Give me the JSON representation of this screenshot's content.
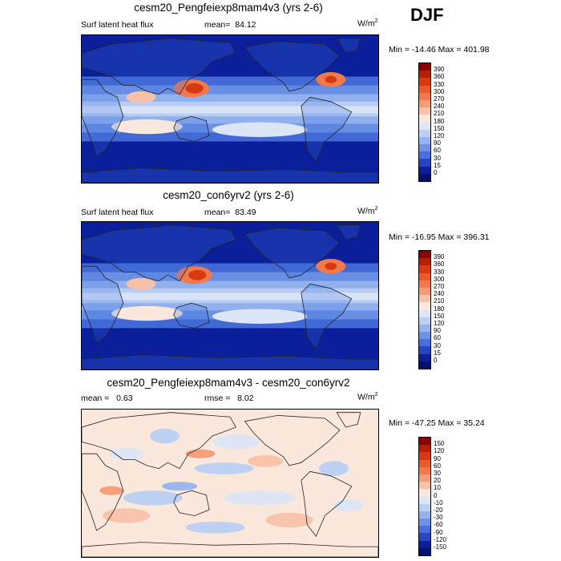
{
  "season": "DJF",
  "units_base": "W/m",
  "units_exp": "2",
  "panels": [
    {
      "title": "cesm20_Pengfeiexp8mam4v3 (yrs 2-6)",
      "left_label": "Surf latent heat flux",
      "stat_label": "mean=",
      "stat_value": "84.12",
      "minmax": "Min = -14.46 Max = 401.98"
    },
    {
      "title": "cesm20_con6yrv2 (yrs 2-6)",
      "left_label": "Surf latent heat flux",
      "stat_label": "mean=",
      "stat_value": "83.49",
      "minmax": "Min = -16.95 Max = 396.31"
    },
    {
      "title": "cesm20_Pengfeiexp8mam4v3 - cesm20_con6yrv2",
      "left_label": "mean =",
      "left_value": "0.63",
      "stat_label": "rmse =",
      "stat_value": "8.02",
      "minmax": "Min = -47.25 Max =  35.24"
    }
  ],
  "chart_data": [
    {
      "type": "heatmap",
      "title": "cesm20_Pengfeiexp8mam4v3 (yrs 2-6)",
      "variable": "Surf latent heat flux",
      "mean": 84.12,
      "min": -14.46,
      "max": 401.98,
      "levels": [
        "390",
        "360",
        "330",
        "300",
        "270",
        "240",
        "210",
        "180",
        "150",
        "120",
        "90",
        "60",
        "30",
        "15",
        "0"
      ],
      "colors": [
        "#8b0000",
        "#b22000",
        "#d73a10",
        "#ea5a2a",
        "#f2794b",
        "#f59b75",
        "#f8c2a8",
        "#fbe8dd",
        "#dce6f7",
        "#bcd0f3",
        "#96b4ee",
        "#6e93e5",
        "#4870dc",
        "#2646c4",
        "#0b1f9b",
        "#00126e"
      ]
    },
    {
      "type": "heatmap",
      "title": "cesm20_con6yrv2 (yrs 2-6)",
      "variable": "Surf latent heat flux",
      "mean": 83.49,
      "min": -16.95,
      "max": 396.31,
      "levels": [
        "390",
        "360",
        "330",
        "300",
        "270",
        "240",
        "210",
        "180",
        "150",
        "120",
        "90",
        "60",
        "30",
        "15",
        "0"
      ],
      "colors": [
        "#8b0000",
        "#b22000",
        "#d73a10",
        "#ea5a2a",
        "#f2794b",
        "#f59b75",
        "#f8c2a8",
        "#fbe8dd",
        "#dce6f7",
        "#bcd0f3",
        "#96b4ee",
        "#6e93e5",
        "#4870dc",
        "#2646c4",
        "#0b1f9b",
        "#00126e"
      ]
    },
    {
      "type": "heatmap",
      "title": "cesm20_Pengfeiexp8mam4v3 - cesm20_con6yrv2",
      "mean": 0.63,
      "rmse": 8.02,
      "min": -47.25,
      "max": 35.24,
      "levels": [
        "150",
        "120",
        "90",
        "60",
        "30",
        "20",
        "10",
        "0",
        "-10",
        "-20",
        "-30",
        "-60",
        "-90",
        "-120",
        "-150"
      ],
      "colors": [
        "#8b0000",
        "#b22000",
        "#d73a10",
        "#ea5a2a",
        "#f2794b",
        "#f59b75",
        "#f8c2a8",
        "#fbe8dd",
        "#dce6f7",
        "#bcd0f3",
        "#96b4ee",
        "#6e93e5",
        "#4870dc",
        "#2646c4",
        "#0b1f9b",
        "#00126e"
      ]
    }
  ]
}
